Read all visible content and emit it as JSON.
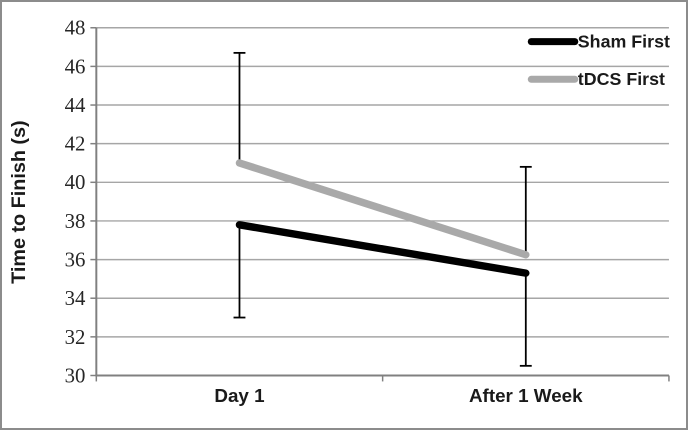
{
  "chart_data": {
    "type": "line",
    "title": "",
    "xlabel": "",
    "ylabel": "Time to Finish (s)",
    "categories": [
      "Day 1",
      "After 1 Week"
    ],
    "series": [
      {
        "name": "Sham First",
        "color": "#000000",
        "values": [
          37.8,
          35.3
        ],
        "error_bar_direction": "down",
        "error_bar_ends": [
          33.0,
          30.5
        ]
      },
      {
        "name": "tDCS First",
        "color": "#a9a9a9",
        "values": [
          41.0,
          36.25
        ],
        "error_bar_direction": "up",
        "error_bar_ends": [
          46.7,
          40.8
        ]
      }
    ],
    "ylim": [
      30,
      48
    ],
    "ytick_step": 2,
    "grid": true,
    "legend_position": "top-right-inside",
    "colors": {
      "gridline": "#a6a6a6",
      "axis": "#808080",
      "error_bar": "#000000",
      "tick_label": "#262626",
      "frame_border": "#8c8c8c",
      "background": "#ffffff"
    }
  }
}
